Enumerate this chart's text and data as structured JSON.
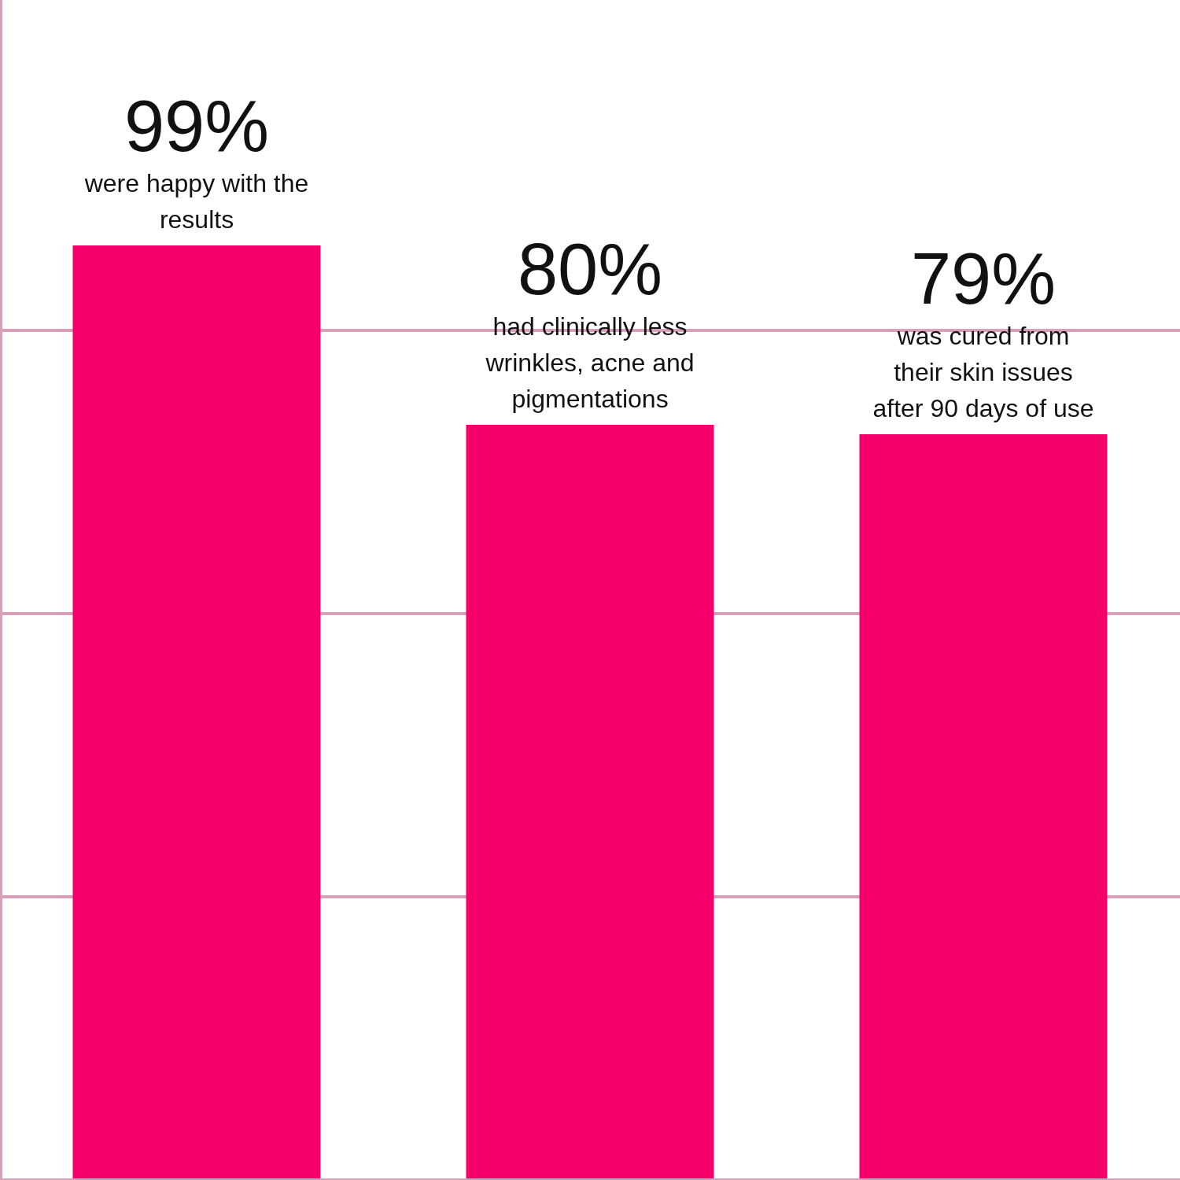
{
  "chart_data": {
    "type": "bar",
    "categories": [
      "were happy with the results",
      "had clinically less wrinkles, acne and pigmentations",
      "was cured from their skin issues after 90 days of use"
    ],
    "values": [
      99,
      80,
      79
    ],
    "value_labels": [
      "99%",
      "80%",
      "79%"
    ],
    "color": "#f5006b",
    "ylim": [
      0,
      125
    ],
    "yticks": [
      {
        "value": 0,
        "label": null
      },
      {
        "value": 30,
        "label": null
      },
      {
        "value": 60,
        "label": null
      },
      {
        "value": 90,
        "label": null
      }
    ],
    "grid": "y",
    "legend": false
  }
}
